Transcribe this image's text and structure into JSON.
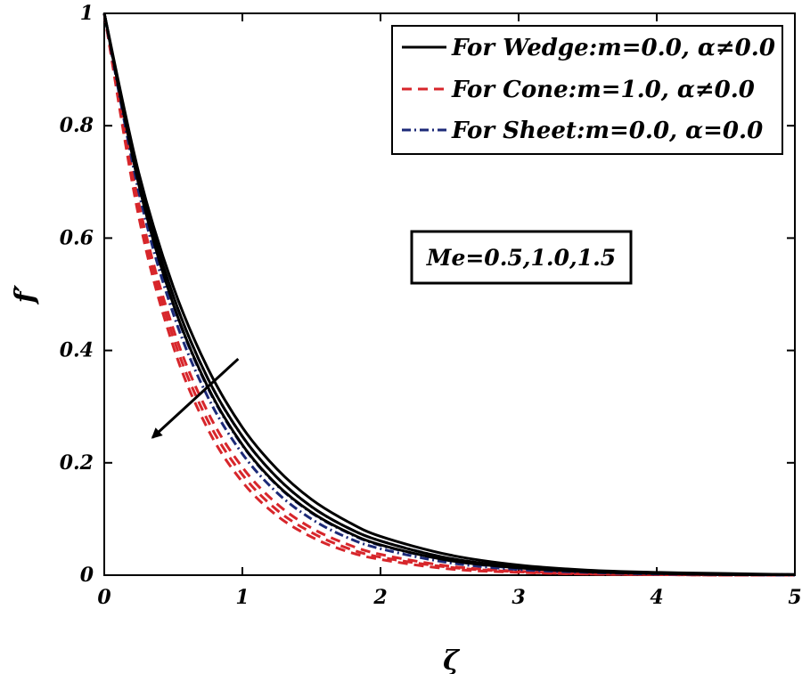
{
  "chart_data": {
    "type": "line",
    "title": "",
    "xlabel": "ζ",
    "ylabel": "f′",
    "xlim": [
      0,
      5
    ],
    "ylim": [
      0,
      1
    ],
    "xticks": [
      0,
      1,
      2,
      3,
      4,
      5
    ],
    "yticks": [
      0,
      0.2,
      0.4,
      0.6,
      0.8,
      1
    ],
    "xtick_labels": [
      "0",
      "1",
      "2",
      "3",
      "4",
      "5"
    ],
    "ytick_labels": [
      "0",
      "0.2",
      "0.4",
      "0.6",
      "0.8",
      "1"
    ],
    "grid": false,
    "legend_position": "top-right",
    "legend": [
      {
        "label": "For Wedge:m=0.0, α≠0.0",
        "color": "#000000",
        "style": "solid"
      },
      {
        "label": "For Cone:m=1.0, α≠0.0",
        "color": "#d7262b",
        "style": "dashed"
      },
      {
        "label": "For Sheet:m=0.0, α=0.0",
        "color": "#1c2a78",
        "style": "dashdot"
      }
    ],
    "x": [
      0,
      0.25,
      0.5,
      0.75,
      1.0,
      1.25,
      1.5,
      1.75,
      2.0,
      2.5,
      3.0,
      3.5,
      4.0,
      4.5,
      5.0
    ],
    "series": [
      {
        "name": "Wedge Me=0.5",
        "group": "wedge",
        "color": "#000000",
        "style": "solid",
        "values": [
          1,
          0.716,
          0.513,
          0.368,
          0.263,
          0.189,
          0.135,
          0.097,
          0.069,
          0.036,
          0.018,
          0.009,
          0.005,
          0.003,
          0.001
        ]
      },
      {
        "name": "Wedge Me=1.0",
        "group": "wedge",
        "color": "#000000",
        "style": "solid",
        "values": [
          1,
          0.705,
          0.497,
          0.35,
          0.247,
          0.174,
          0.122,
          0.086,
          0.061,
          0.03,
          0.015,
          0.007,
          0.004,
          0.002,
          0.001
        ]
      },
      {
        "name": "Wedge Me=1.5",
        "group": "wedge",
        "color": "#000000",
        "style": "solid",
        "values": [
          1,
          0.695,
          0.482,
          0.335,
          0.232,
          0.161,
          0.112,
          0.078,
          0.054,
          0.026,
          0.013,
          0.006,
          0.003,
          0.001,
          0.001
        ]
      },
      {
        "name": "Cone Me=0.5",
        "group": "cone",
        "color": "#d7262b",
        "style": "dashed",
        "values": [
          1,
          0.662,
          0.438,
          0.29,
          0.192,
          0.127,
          0.084,
          0.056,
          0.037,
          0.016,
          0.007,
          0.003,
          0.001,
          0.001,
          0.0
        ]
      },
      {
        "name": "Cone Me=1.0",
        "group": "cone",
        "color": "#d7262b",
        "style": "dashed",
        "values": [
          1,
          0.65,
          0.423,
          0.275,
          0.179,
          0.116,
          0.076,
          0.049,
          0.032,
          0.014,
          0.006,
          0.002,
          0.001,
          0.0,
          0.0
        ]
      },
      {
        "name": "Cone Me=1.5",
        "group": "cone",
        "color": "#d7262b",
        "style": "dashed",
        "values": [
          1,
          0.638,
          0.407,
          0.26,
          0.166,
          0.106,
          0.068,
          0.043,
          0.028,
          0.011,
          0.005,
          0.002,
          0.001,
          0.0,
          0.0
        ]
      },
      {
        "name": "Sheet Me=0.5",
        "group": "sheet",
        "color": "#1c2a78",
        "style": "dashdot",
        "values": [
          1,
          0.705,
          0.497,
          0.35,
          0.247,
          0.174,
          0.122,
          0.086,
          0.061,
          0.03,
          0.015,
          0.007,
          0.004,
          0.002,
          0.001
        ]
      },
      {
        "name": "Sheet Me=1.0",
        "group": "sheet",
        "color": "#1c2a78",
        "style": "dashdot",
        "values": [
          1,
          0.693,
          0.48,
          0.333,
          0.231,
          0.16,
          0.111,
          0.077,
          0.053,
          0.026,
          0.012,
          0.006,
          0.003,
          0.001,
          0.001
        ]
      },
      {
        "name": "Sheet Me=1.5",
        "group": "sheet",
        "color": "#1c2a78",
        "style": "dashdot",
        "values": [
          1,
          0.682,
          0.465,
          0.317,
          0.216,
          0.147,
          0.1,
          0.068,
          0.047,
          0.022,
          0.01,
          0.005,
          0.002,
          0.001,
          0.0
        ]
      }
    ],
    "annotation": {
      "text": "Me=0.5,1.0,1.5",
      "arrow_from": [
        0.97,
        0.385
      ],
      "arrow_to": [
        0.35,
        0.245
      ]
    }
  }
}
